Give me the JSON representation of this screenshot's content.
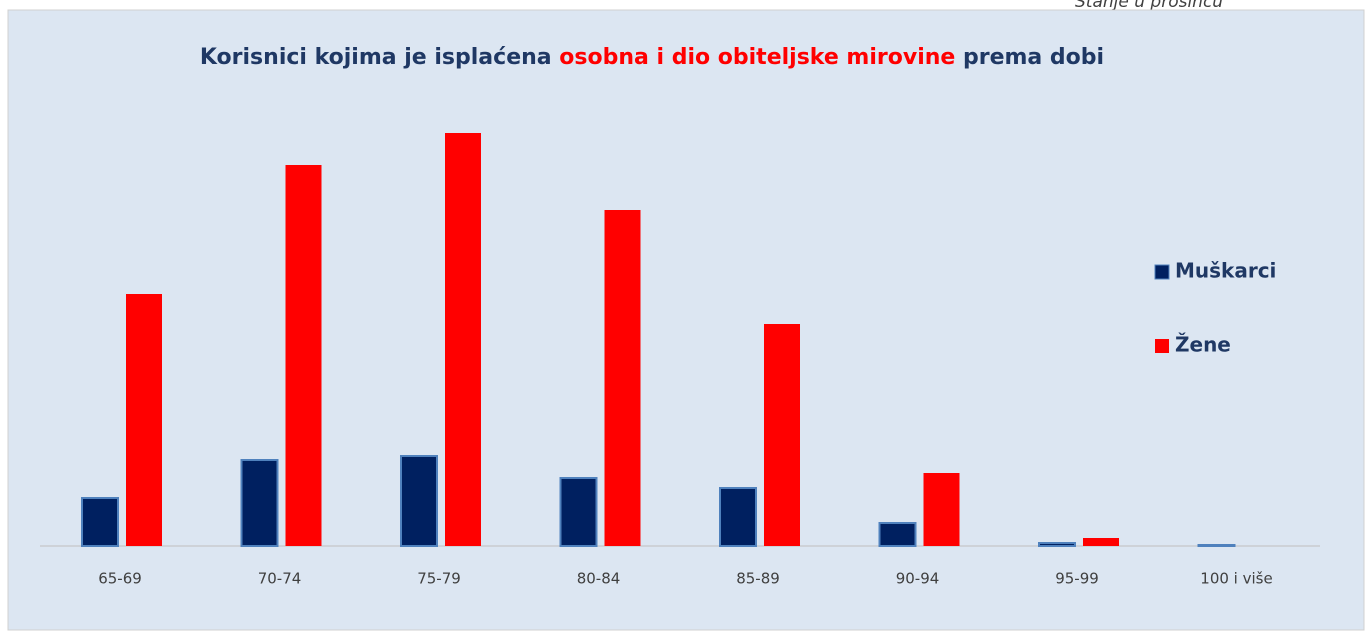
{
  "note_top": "Stanje u prosincu",
  "chart_data": {
    "type": "bar",
    "title_parts": [
      "Korisnici kojima je isplaćena ",
      "osobna i dio obiteljske mirovine",
      " prema dobi"
    ],
    "categories": [
      "65-69",
      "70-74",
      "75-79",
      "80-84",
      "85-89",
      "90-94",
      "95-99",
      "100 i više"
    ],
    "series": [
      {
        "name": "Muškarci",
        "color": "#002060",
        "values": [
          48,
          86,
          90,
          68,
          58,
          23,
          3,
          1
        ]
      },
      {
        "name": "Žene",
        "color": "#ff0000",
        "values": [
          252,
          381,
          413,
          336,
          222,
          73,
          8,
          0
        ]
      }
    ],
    "ylim": [
      0,
      420
    ],
    "legend": "right"
  }
}
